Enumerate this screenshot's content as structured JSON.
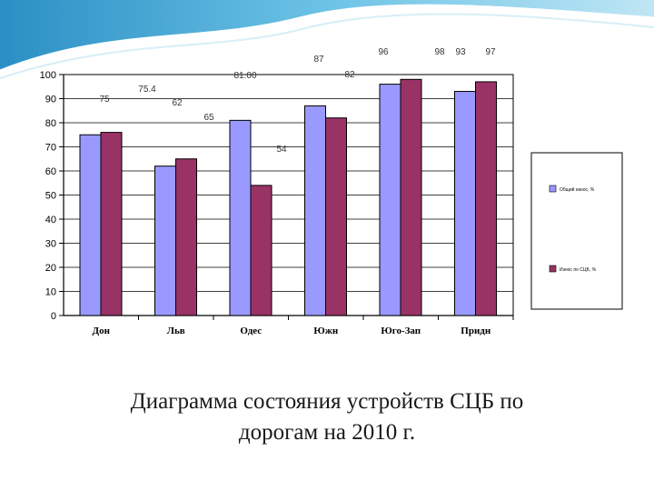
{
  "slide": {
    "caption_line1": "Диаграмма состояния устройств СЦБ по",
    "caption_line2": "дорогам на 2010 г."
  },
  "colors": {
    "header_wave": "#3aa0d0",
    "series1": "#9999ff",
    "series2": "#993366",
    "plot_bg": "#ffffff",
    "axis": "#000000"
  },
  "chart_data": {
    "type": "bar",
    "categories": [
      "Дон",
      "Льв",
      "Одес",
      "Южн",
      "Юго-Зап",
      "Придн"
    ],
    "series": [
      {
        "name": "Общий износ, %",
        "values": [
          75,
          62,
          81,
          87,
          96,
          93
        ]
      },
      {
        "name": "Износ по СЦБ, %",
        "values": [
          76,
          65,
          54,
          82,
          98,
          97
        ]
      }
    ],
    "ylim": [
      0,
      100
    ],
    "yticks": [
      0,
      10,
      20,
      30,
      40,
      50,
      60,
      70,
      80,
      90,
      100
    ],
    "grid": true,
    "legend_position": "right",
    "annotations": [
      "75",
      "75.4",
      "62",
      "65",
      "81.00",
      "54",
      "87",
      "82",
      "96",
      "98",
      "93",
      "97"
    ]
  }
}
